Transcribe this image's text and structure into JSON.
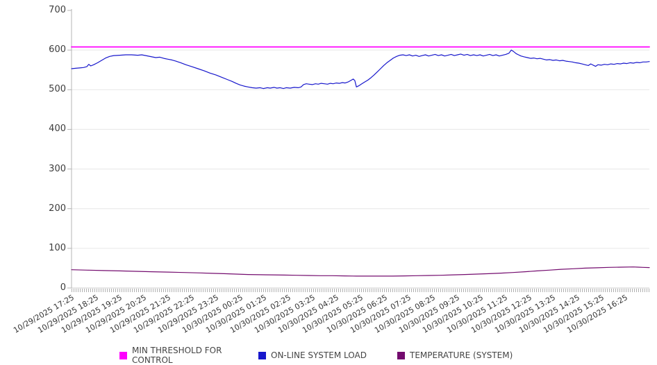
{
  "chart_data": {
    "type": "line",
    "title": "",
    "xlabel": "",
    "ylabel": "",
    "ylim": [
      0,
      700
    ],
    "yticks": [
      0,
      100,
      200,
      300,
      400,
      500,
      600,
      700
    ],
    "grid": "horizontal-only",
    "legend_position": "bottom",
    "x_minutes_span": 1440,
    "categories": [
      "10/29/2025 17:25",
      "10/29/2025 18:25",
      "10/29/2025 19:25",
      "10/29/2025 20:25",
      "10/29/2025 21:25",
      "10/29/2025 22:25",
      "10/29/2025 23:25",
      "10/30/2025 00:25",
      "10/30/2025 01:25",
      "10/30/2025 02:25",
      "10/30/2025 03:25",
      "10/30/2025 04:25",
      "10/30/2025 05:25",
      "10/30/2025 06:25",
      "10/30/2025 07:25",
      "10/30/2025 08:25",
      "10/30/2025 09:25",
      "10/30/2025 10:25",
      "10/30/2025 11:25",
      "10/30/2025 12:25",
      "10/30/2025 13:25",
      "10/30/2025 14:25",
      "10/30/2025 15:25",
      "10/30/2025 16:25"
    ],
    "series": [
      {
        "name": "MIN THRESHOLD FOR CONTROL",
        "color": "#ff00ff",
        "width": 1.8,
        "points": [
          [
            0,
            608
          ],
          [
            1440,
            608
          ]
        ]
      },
      {
        "name": "ON-LINE SYSTEM LOAD",
        "color": "#1717cc",
        "width": 1.2,
        "points": [
          [
            0,
            553
          ],
          [
            10,
            554
          ],
          [
            20,
            555
          ],
          [
            30,
            556
          ],
          [
            38,
            558
          ],
          [
            43,
            564
          ],
          [
            48,
            560
          ],
          [
            55,
            563
          ],
          [
            65,
            568
          ],
          [
            75,
            574
          ],
          [
            85,
            580
          ],
          [
            95,
            584
          ],
          [
            105,
            586
          ],
          [
            120,
            587
          ],
          [
            135,
            588
          ],
          [
            150,
            588
          ],
          [
            165,
            587
          ],
          [
            175,
            588
          ],
          [
            185,
            586
          ],
          [
            200,
            583
          ],
          [
            210,
            581
          ],
          [
            220,
            582
          ],
          [
            230,
            579
          ],
          [
            240,
            577
          ],
          [
            250,
            575
          ],
          [
            260,
            572
          ],
          [
            272,
            568
          ],
          [
            285,
            563
          ],
          [
            300,
            558
          ],
          [
            315,
            553
          ],
          [
            330,
            548
          ],
          [
            345,
            542
          ],
          [
            360,
            537
          ],
          [
            375,
            531
          ],
          [
            390,
            525
          ],
          [
            400,
            521
          ],
          [
            410,
            516
          ],
          [
            420,
            512
          ],
          [
            430,
            509
          ],
          [
            440,
            507
          ],
          [
            450,
            505
          ],
          [
            460,
            504
          ],
          [
            470,
            505
          ],
          [
            478,
            503
          ],
          [
            488,
            505
          ],
          [
            495,
            504
          ],
          [
            505,
            506
          ],
          [
            512,
            504
          ],
          [
            520,
            505
          ],
          [
            528,
            503
          ],
          [
            535,
            505
          ],
          [
            545,
            504
          ],
          [
            555,
            506
          ],
          [
            565,
            505
          ],
          [
            572,
            507
          ],
          [
            578,
            513
          ],
          [
            585,
            515
          ],
          [
            592,
            514
          ],
          [
            600,
            513
          ],
          [
            608,
            515
          ],
          [
            615,
            514
          ],
          [
            622,
            516
          ],
          [
            630,
            515
          ],
          [
            638,
            514
          ],
          [
            645,
            516
          ],
          [
            652,
            515
          ],
          [
            660,
            517
          ],
          [
            668,
            516
          ],
          [
            675,
            518
          ],
          [
            682,
            517
          ],
          [
            690,
            520
          ],
          [
            697,
            524
          ],
          [
            702,
            527
          ],
          [
            706,
            523
          ],
          [
            710,
            507
          ],
          [
            716,
            510
          ],
          [
            722,
            514
          ],
          [
            730,
            519
          ],
          [
            738,
            524
          ],
          [
            746,
            530
          ],
          [
            754,
            537
          ],
          [
            762,
            545
          ],
          [
            770,
            553
          ],
          [
            778,
            561
          ],
          [
            786,
            568
          ],
          [
            794,
            574
          ],
          [
            802,
            580
          ],
          [
            810,
            584
          ],
          [
            818,
            587
          ],
          [
            826,
            588
          ],
          [
            834,
            586
          ],
          [
            842,
            588
          ],
          [
            850,
            585
          ],
          [
            858,
            587
          ],
          [
            866,
            584
          ],
          [
            874,
            586
          ],
          [
            882,
            588
          ],
          [
            890,
            585
          ],
          [
            898,
            587
          ],
          [
            906,
            589
          ],
          [
            914,
            586
          ],
          [
            922,
            588
          ],
          [
            930,
            585
          ],
          [
            938,
            587
          ],
          [
            946,
            589
          ],
          [
            954,
            586
          ],
          [
            962,
            588
          ],
          [
            970,
            590
          ],
          [
            978,
            587
          ],
          [
            986,
            589
          ],
          [
            994,
            586
          ],
          [
            1002,
            588
          ],
          [
            1010,
            586
          ],
          [
            1018,
            588
          ],
          [
            1026,
            585
          ],
          [
            1034,
            587
          ],
          [
            1042,
            589
          ],
          [
            1050,
            586
          ],
          [
            1058,
            588
          ],
          [
            1066,
            585
          ],
          [
            1074,
            587
          ],
          [
            1082,
            589
          ],
          [
            1090,
            592
          ],
          [
            1096,
            600
          ],
          [
            1102,
            596
          ],
          [
            1108,
            591
          ],
          [
            1114,
            588
          ],
          [
            1120,
            585
          ],
          [
            1128,
            583
          ],
          [
            1136,
            581
          ],
          [
            1144,
            579
          ],
          [
            1152,
            580
          ],
          [
            1160,
            578
          ],
          [
            1168,
            579
          ],
          [
            1176,
            577
          ],
          [
            1184,
            575
          ],
          [
            1192,
            576
          ],
          [
            1200,
            574
          ],
          [
            1208,
            575
          ],
          [
            1216,
            573
          ],
          [
            1224,
            574
          ],
          [
            1232,
            572
          ],
          [
            1240,
            571
          ],
          [
            1248,
            570
          ],
          [
            1256,
            568
          ],
          [
            1264,
            567
          ],
          [
            1272,
            565
          ],
          [
            1280,
            563
          ],
          [
            1288,
            561
          ],
          [
            1294,
            565
          ],
          [
            1300,
            562
          ],
          [
            1306,
            559
          ],
          [
            1312,
            563
          ],
          [
            1320,
            562
          ],
          [
            1328,
            564
          ],
          [
            1336,
            563
          ],
          [
            1344,
            565
          ],
          [
            1352,
            564
          ],
          [
            1360,
            566
          ],
          [
            1368,
            565
          ],
          [
            1376,
            567
          ],
          [
            1384,
            566
          ],
          [
            1392,
            568
          ],
          [
            1400,
            567
          ],
          [
            1408,
            569
          ],
          [
            1416,
            568
          ],
          [
            1424,
            570
          ],
          [
            1432,
            570
          ],
          [
            1440,
            571
          ]
        ]
      },
      {
        "name": "TEMPERATURE (SYSTEM)",
        "color": "#730b6e",
        "width": 1.2,
        "points": [
          [
            0,
            46
          ],
          [
            40,
            45
          ],
          [
            80,
            44
          ],
          [
            120,
            43
          ],
          [
            160,
            42
          ],
          [
            200,
            41
          ],
          [
            240,
            40
          ],
          [
            280,
            39
          ],
          [
            320,
            38
          ],
          [
            350,
            37
          ],
          [
            380,
            36
          ],
          [
            410,
            35
          ],
          [
            440,
            34
          ],
          [
            470,
            33.5
          ],
          [
            500,
            33
          ],
          [
            530,
            32.5
          ],
          [
            560,
            32
          ],
          [
            590,
            31.5
          ],
          [
            620,
            31
          ],
          [
            650,
            31
          ],
          [
            680,
            30.5
          ],
          [
            710,
            30
          ],
          [
            740,
            30
          ],
          [
            770,
            30
          ],
          [
            800,
            30
          ],
          [
            830,
            30.5
          ],
          [
            860,
            31
          ],
          [
            890,
            31.5
          ],
          [
            920,
            32
          ],
          [
            950,
            33
          ],
          [
            980,
            34
          ],
          [
            1010,
            35
          ],
          [
            1040,
            36
          ],
          [
            1070,
            37.5
          ],
          [
            1100,
            39
          ],
          [
            1130,
            41
          ],
          [
            1160,
            43
          ],
          [
            1190,
            45
          ],
          [
            1220,
            47
          ],
          [
            1250,
            48.5
          ],
          [
            1280,
            50
          ],
          [
            1310,
            51
          ],
          [
            1340,
            52
          ],
          [
            1370,
            52.5
          ],
          [
            1400,
            53
          ],
          [
            1412,
            52.5
          ],
          [
            1424,
            52
          ],
          [
            1440,
            51.5
          ]
        ]
      }
    ]
  },
  "legend": {
    "items": [
      {
        "label": "MIN THRESHOLD FOR CONTROL"
      },
      {
        "label": "ON-LINE SYSTEM LOAD"
      },
      {
        "label": "TEMPERATURE (SYSTEM)"
      }
    ]
  },
  "colors": {
    "grid": "#e7e7e7",
    "zero_line": "#cfcfcf",
    "axis": "#b4b4b4"
  }
}
